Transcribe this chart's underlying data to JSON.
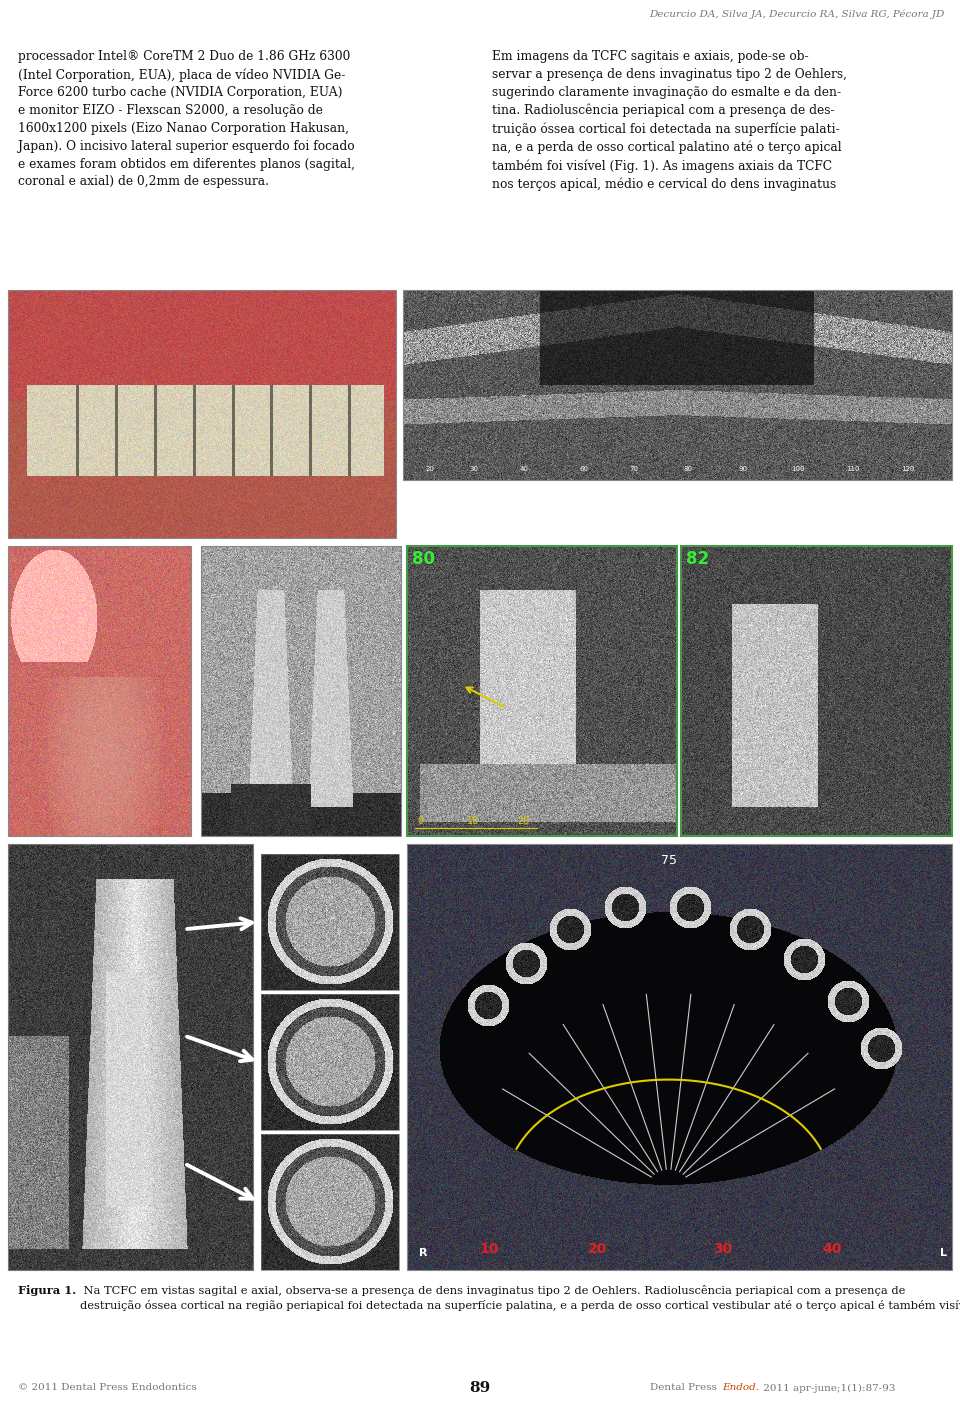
{
  "page_bg": "#ffffff",
  "header": "Decurcio DA, Silva JA, Decurcio RA, Silva RG, Pécora JD",
  "col1_text": "processador Intel® CoreTM 2 Duo de 1.86 GHz 6300\n(Intel Corporation, EUA), placa de vídeo NVIDIA Ge-\nForce 6200 turbo cache (NVIDIA Corporation, EUA)\ne monitor EIZO - Flexscan S2000, a resolução de\n1600x1200 pixels (Eizo Nanao Corporation Hakusan,\nJapan). O incisivo lateral superior esquerdo foi focado\ne exames foram obtidos em diferentes planos (sagital,\ncoronal e axial) de 0,2mm de espessura.",
  "col2_text": "Em imagens da TCFC sagitais e axiais, pode-se ob-\nservar a presença de dens invaginatus tipo 2 de Oehlers,\nsugerindo claramente invaginação do esmalte e da den-\ntina. Radioluscência periapical com a presença de des-\ntruição óssea cortical foi detectada na superfície palati-\nna, e a perda de osso cortical palatino até o terço apical\ntambém foi visível (Fig. 1). As imagens axiais da TCFC\nnos terços apical, médio e cervical do dens invaginatus",
  "figura_bold": "Figura 1.",
  "figura_rest": " Na TCFC em vistas sagital e axial, observa-se a presença de dens invaginatus tipo 2 de Oehlers. Radioluscência periapical com a presença de destruição óssea cortical na região periapical foi detectada na superfície palatina, e a perda de osso cortical vestibular até o terço apical é também visível.",
  "footer_left": "© 2011 Dental Press Endodontics",
  "footer_center": "89",
  "endod_color": "#cc4400",
  "text_color": "#111111",
  "muted_color": "#777777",
  "panel_bg": "#111111",
  "green_color": "#33ee33",
  "yellow_color": "#ddcc00",
  "red_color": "#dd2222",
  "white": "#ffffff"
}
